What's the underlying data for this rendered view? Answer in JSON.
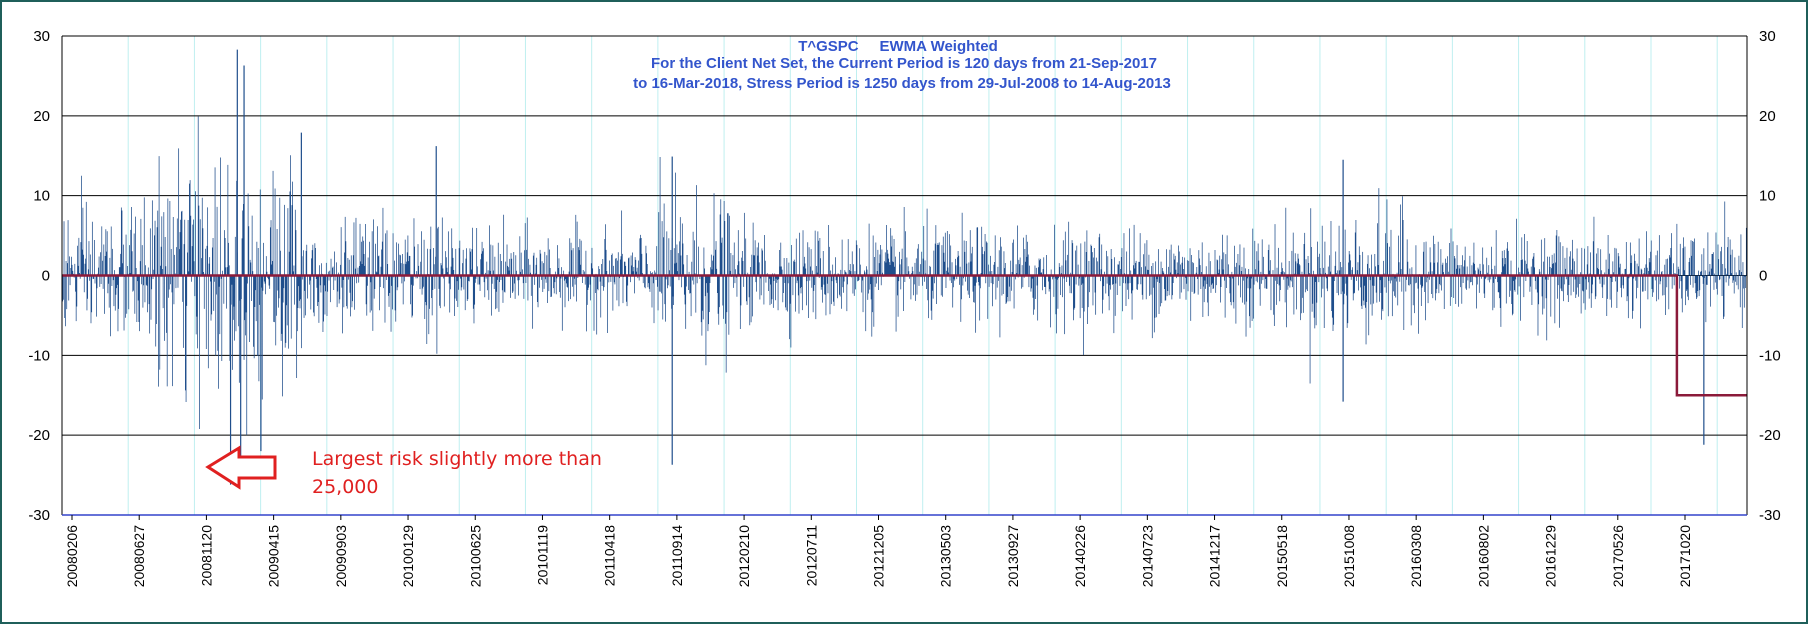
{
  "chart_data": {
    "type": "line",
    "title_lines": [
      "T^GSPC     EWMA Weighted",
      "For the Client Net Set, the Current Period is 120 days from 21-Sep-2017",
      "to 16-Mar-2018, Stress Period is 1250 days from 29-Jul-2008 to 14-Aug-2013"
    ],
    "ylim": [
      -30,
      30
    ],
    "y_ticks": [
      "30",
      "20",
      "10",
      "0",
      "-10",
      "-20",
      "-30"
    ],
    "y_tick_values": [
      30,
      20,
      10,
      0,
      -10,
      -20,
      -30
    ],
    "x_tick_labels": [
      "20080206",
      "20080627",
      "20081120",
      "20090415",
      "20090903",
      "20100129",
      "20100625",
      "20101119",
      "20110418",
      "20110914",
      "20120210",
      "20120711",
      "20121205",
      "20130503",
      "20130927",
      "20140226",
      "20140723",
      "20141217",
      "20150518",
      "20151008",
      "20160308",
      "20160802",
      "20161229",
      "20170526",
      "20171020"
    ],
    "grid": "horizontal and vertical",
    "n_observations": 2500,
    "series": [
      {
        "kind": "daily P&L bars",
        "color": "#1f4e8c",
        "envelope_peaks": [
          {
            "index": 260,
            "value": 28.3
          },
          {
            "index": 270,
            "value": 26.3
          },
          {
            "index": 250,
            "value": -26.2
          },
          {
            "index": 265,
            "value": -23.4
          },
          {
            "index": 295,
            "value": -22.0
          },
          {
            "index": 905,
            "value": 14.9
          },
          {
            "index": 905,
            "value": -23.7
          },
          {
            "index": 555,
            "value": 16.2
          },
          {
            "index": 355,
            "value": 17.9
          },
          {
            "index": 1900,
            "value": 14.5
          },
          {
            "index": 1900,
            "value": -15.8
          },
          {
            "index": 2435,
            "value": -21.2
          }
        ]
      },
      {
        "kind": "risk measure step line",
        "color": "#8b1a3a",
        "points": [
          {
            "x_index": 0,
            "value": 0
          },
          {
            "x_index": 2395,
            "value": 0
          },
          {
            "x_index": 2395,
            "value": -15
          },
          {
            "x_index": 2499,
            "value": -15
          }
        ]
      }
    ],
    "annotation": {
      "text_lines": [
        "Largest risk slightly more than",
        "25,000"
      ],
      "color": "#e02020",
      "arrow": "left"
    }
  }
}
